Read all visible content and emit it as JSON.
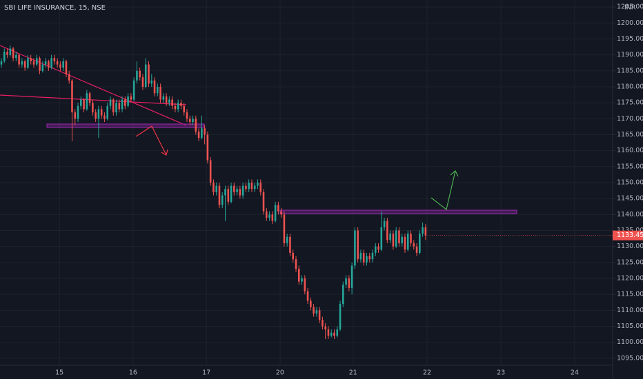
{
  "chart_data": {
    "type": "candlestick",
    "title": "SBI LIFE INSURANCE, 15, NSE",
    "currency": "INR",
    "up_color": "#26a69a",
    "down_color": "#ef5350",
    "grid": true,
    "xlim": [
      -0.47,
      207.5
    ],
    "xticks": [
      {
        "value": 19.7,
        "label": "15"
      },
      {
        "value": 44.7,
        "label": "16"
      },
      {
        "value": 69.6,
        "label": "17"
      },
      {
        "value": 94.6,
        "label": "20"
      },
      {
        "value": 119.4,
        "label": "21"
      },
      {
        "value": 144.5,
        "label": "22"
      },
      {
        "value": 169.6,
        "label": "23"
      },
      {
        "value": 194.6,
        "label": "24"
      }
    ],
    "ylim": [
      1092.8,
      1207.2
    ],
    "yticks": [
      {
        "value": 1095,
        "label": "1095.00"
      },
      {
        "value": 1100,
        "label": "1100.00"
      },
      {
        "value": 1105,
        "label": "1105.00"
      },
      {
        "value": 1110,
        "label": "1110.00"
      },
      {
        "value": 1115,
        "label": "1115.00"
      },
      {
        "value": 1120,
        "label": "1120.00"
      },
      {
        "value": 1125,
        "label": "1125.00"
      },
      {
        "value": 1130,
        "label": "1130.00"
      },
      {
        "value": 1135,
        "label": "1135.00"
      },
      {
        "value": 1140,
        "label": "1140.00"
      },
      {
        "value": 1145,
        "label": "1145.00"
      },
      {
        "value": 1150,
        "label": "1150.00"
      },
      {
        "value": 1155,
        "label": "1155.00"
      },
      {
        "value": 1160,
        "label": "1160.00"
      },
      {
        "value": 1165,
        "label": "1165.00"
      },
      {
        "value": 1170,
        "label": "1170.00"
      },
      {
        "value": 1175,
        "label": "1175.00"
      },
      {
        "value": 1180,
        "label": "1180.00"
      },
      {
        "value": 1185,
        "label": "1185.00"
      },
      {
        "value": 1190,
        "label": "1190.00"
      },
      {
        "value": 1195,
        "label": "1195.00"
      },
      {
        "value": 1200,
        "label": "1200.00"
      },
      {
        "value": 1205,
        "label": "1205.00"
      }
    ],
    "candles": [
      [
        1187,
        1189,
        1186,
        1188
      ],
      [
        1188,
        1192,
        1187.5,
        1191
      ],
      [
        1191,
        1192,
        1189,
        1190
      ],
      [
        1190,
        1193,
        1189.5,
        1192
      ],
      [
        1192,
        1192.5,
        1188,
        1189
      ],
      [
        1189,
        1191,
        1188,
        1190
      ],
      [
        1190,
        1190.5,
        1186,
        1187
      ],
      [
        1187,
        1189,
        1186,
        1188
      ],
      [
        1188,
        1188.5,
        1185,
        1186
      ],
      [
        1186,
        1190,
        1185.5,
        1189
      ],
      [
        1189,
        1190,
        1187,
        1188
      ],
      [
        1188,
        1189,
        1186,
        1187
      ],
      [
        1187,
        1190,
        1186.5,
        1189
      ],
      [
        1189,
        1189.5,
        1184,
        1185
      ],
      [
        1185,
        1188,
        1184.5,
        1187
      ],
      [
        1187,
        1189,
        1186,
        1188
      ],
      [
        1188,
        1188.5,
        1185,
        1186
      ],
      [
        1186,
        1190,
        1185.5,
        1189
      ],
      [
        1189,
        1190,
        1187,
        1188
      ],
      [
        1188,
        1189,
        1186,
        1187
      ],
      [
        1187,
        1188,
        1185,
        1186
      ],
      [
        1186,
        1189,
        1185,
        1188
      ],
      [
        1188,
        1188.5,
        1183,
        1184
      ],
      [
        1184,
        1185,
        1181,
        1182
      ],
      [
        1182,
        1182.5,
        1163,
        1172
      ],
      [
        1172,
        1173,
        1168,
        1170
      ],
      [
        1170,
        1175,
        1169,
        1174
      ],
      [
        1174,
        1177,
        1173,
        1176
      ],
      [
        1176,
        1176.5,
        1172,
        1173
      ],
      [
        1173,
        1179,
        1172.5,
        1178
      ],
      [
        1178,
        1178.5,
        1174,
        1175
      ],
      [
        1175,
        1176,
        1171,
        1172
      ],
      [
        1172,
        1173,
        1169,
        1170
      ],
      [
        1170,
        1174,
        1164,
        1173
      ],
      [
        1173,
        1174,
        1170,
        1171
      ],
      [
        1171,
        1172,
        1169,
        1170
      ],
      [
        1170,
        1175,
        1169.5,
        1174
      ],
      [
        1174,
        1177,
        1173,
        1176
      ],
      [
        1176,
        1176.5,
        1171,
        1172
      ],
      [
        1172,
        1176,
        1171,
        1175
      ],
      [
        1175,
        1176,
        1172,
        1173
      ],
      [
        1173,
        1177,
        1172,
        1176
      ],
      [
        1176,
        1177,
        1173,
        1174
      ],
      [
        1174,
        1178,
        1173.5,
        1177
      ],
      [
        1177,
        1178,
        1175,
        1176
      ],
      [
        1176,
        1183,
        1175.5,
        1182
      ],
      [
        1182,
        1188,
        1181,
        1185
      ],
      [
        1185,
        1186,
        1182,
        1183
      ],
      [
        1183,
        1184,
        1179,
        1180
      ],
      [
        1180,
        1189,
        1179.5,
        1187
      ],
      [
        1187,
        1188,
        1180,
        1181
      ],
      [
        1181,
        1184,
        1180,
        1182
      ],
      [
        1182,
        1183,
        1177,
        1178
      ],
      [
        1178,
        1181,
        1177,
        1180
      ],
      [
        1180,
        1181,
        1175,
        1176
      ],
      [
        1176,
        1178,
        1175,
        1177
      ],
      [
        1177,
        1178,
        1174,
        1175
      ],
      [
        1175,
        1177,
        1174,
        1176
      ],
      [
        1176,
        1177,
        1173,
        1174
      ],
      [
        1174,
        1175,
        1172,
        1173
      ],
      [
        1173,
        1176,
        1172,
        1175
      ],
      [
        1175,
        1176,
        1173,
        1174
      ],
      [
        1174,
        1175,
        1171,
        1172
      ],
      [
        1172,
        1173,
        1169,
        1170
      ],
      [
        1170,
        1171,
        1168,
        1169
      ],
      [
        1169,
        1171,
        1168,
        1170
      ],
      [
        1170,
        1171,
        1165,
        1166
      ],
      [
        1166,
        1167,
        1163,
        1164
      ],
      [
        1164,
        1171,
        1163.5,
        1167
      ],
      [
        1167,
        1168,
        1162,
        1165
      ],
      [
        1165,
        1166,
        1156,
        1157
      ],
      [
        1157,
        1158,
        1149,
        1150
      ],
      [
        1150,
        1151,
        1146,
        1147
      ],
      [
        1147,
        1150,
        1146,
        1149
      ],
      [
        1149,
        1150,
        1142,
        1143
      ],
      [
        1143,
        1147,
        1142,
        1146
      ],
      [
        1146,
        1149,
        1138,
        1148
      ],
      [
        1148,
        1149,
        1143,
        1144
      ],
      [
        1144,
        1150,
        1143.5,
        1149
      ],
      [
        1149,
        1150,
        1146,
        1147
      ],
      [
        1147,
        1149,
        1146,
        1148
      ],
      [
        1148,
        1149,
        1145,
        1146
      ],
      [
        1146,
        1150,
        1145,
        1149
      ],
      [
        1149,
        1150,
        1147,
        1148
      ],
      [
        1148,
        1151,
        1147,
        1150
      ],
      [
        1150,
        1151,
        1147,
        1148
      ],
      [
        1148,
        1150,
        1147,
        1149
      ],
      [
        1149,
        1151,
        1148,
        1150
      ],
      [
        1150,
        1151,
        1146,
        1147
      ],
      [
        1147,
        1148,
        1140,
        1141
      ],
      [
        1141,
        1142,
        1138,
        1139
      ],
      [
        1139,
        1141,
        1138,
        1140
      ],
      [
        1140,
        1141,
        1137,
        1138
      ],
      [
        1138,
        1144,
        1137.5,
        1143
      ],
      [
        1143,
        1144,
        1140,
        1141
      ],
      [
        1141,
        1142,
        1139,
        1140
      ],
      [
        1140,
        1141,
        1130,
        1131
      ],
      [
        1131,
        1134,
        1130,
        1133
      ],
      [
        1133,
        1134,
        1127,
        1128
      ],
      [
        1128,
        1129,
        1125,
        1126
      ],
      [
        1126,
        1127,
        1122,
        1123
      ],
      [
        1123,
        1124,
        1118,
        1119
      ],
      [
        1119,
        1121,
        1118,
        1120
      ],
      [
        1120,
        1121,
        1115,
        1116
      ],
      [
        1116,
        1117,
        1112,
        1113
      ],
      [
        1113,
        1114,
        1110,
        1111
      ],
      [
        1111,
        1112,
        1108,
        1109
      ],
      [
        1109,
        1111,
        1108,
        1110
      ],
      [
        1110,
        1111,
        1106,
        1107
      ],
      [
        1107,
        1108,
        1104,
        1105
      ],
      [
        1105,
        1106,
        1101,
        1104
      ],
      [
        1104,
        1105,
        1101,
        1102
      ],
      [
        1102,
        1104,
        1101.5,
        1103
      ],
      [
        1103,
        1104,
        1101,
        1102
      ],
      [
        1102,
        1105,
        1101.5,
        1104
      ],
      [
        1104,
        1113,
        1103.5,
        1112
      ],
      [
        1112,
        1119,
        1111,
        1118
      ],
      [
        1118,
        1121,
        1117,
        1120
      ],
      [
        1120,
        1121,
        1116,
        1117
      ],
      [
        1117,
        1125,
        1115,
        1124
      ],
      [
        1124,
        1136,
        1123,
        1135
      ],
      [
        1135,
        1136,
        1125,
        1126
      ],
      [
        1126,
        1129,
        1125,
        1128
      ],
      [
        1128,
        1129,
        1124,
        1125
      ],
      [
        1125,
        1128,
        1124,
        1127
      ],
      [
        1127,
        1128,
        1125,
        1126
      ],
      [
        1126,
        1129,
        1125,
        1128
      ],
      [
        1128,
        1131,
        1127,
        1130
      ],
      [
        1130,
        1131,
        1128,
        1129
      ],
      [
        1129,
        1141,
        1128.5,
        1136
      ],
      [
        1136,
        1139,
        1135,
        1138
      ],
      [
        1138,
        1139,
        1131,
        1132
      ],
      [
        1132,
        1135,
        1131,
        1134
      ],
      [
        1134,
        1135,
        1129,
        1130
      ],
      [
        1130,
        1136,
        1129.5,
        1135
      ],
      [
        1135,
        1136,
        1130,
        1131
      ],
      [
        1131,
        1134,
        1130,
        1133
      ],
      [
        1133,
        1134,
        1128,
        1129
      ],
      [
        1129,
        1135,
        1128.5,
        1134
      ],
      [
        1134,
        1135,
        1130,
        1131
      ],
      [
        1131,
        1132,
        1129,
        1130
      ],
      [
        1130,
        1131,
        1127,
        1128
      ],
      [
        1128,
        1135,
        1127.5,
        1134
      ],
      [
        1134,
        1137.5,
        1133,
        1136
      ],
      [
        1136,
        1137,
        1132,
        1133.45
      ]
    ]
  }
}
